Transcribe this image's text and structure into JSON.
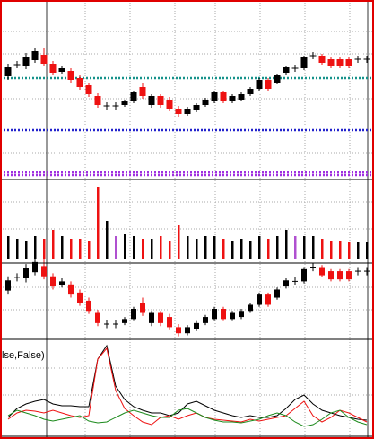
{
  "chart_data": {
    "type": "candlestick",
    "up_color": "#000000",
    "down_color": "#ee1111",
    "grid": true,
    "ylim": [
      0,
      200
    ],
    "open": [
      115,
      128,
      127,
      133,
      139,
      129,
      120,
      121,
      113,
      105,
      93,
      82,
      82,
      83,
      87,
      103,
      83,
      93,
      89,
      79,
      73,
      77,
      83,
      87,
      97,
      87,
      89,
      95,
      101,
      111,
      108,
      119,
      124,
      124,
      138,
      138,
      134,
      134,
      134,
      134,
      134
    ],
    "high": [
      129,
      132,
      141,
      146,
      146,
      132,
      127,
      124,
      116,
      108,
      96,
      86,
      86,
      89,
      99,
      108,
      95,
      95,
      92,
      82,
      81,
      85,
      91,
      99,
      99,
      95,
      97,
      103,
      113,
      113,
      118,
      127,
      128,
      138,
      142,
      140,
      136,
      136,
      136,
      138,
      138
    ],
    "low": [
      111,
      124,
      123,
      130,
      126,
      116,
      118,
      108,
      100,
      92,
      80,
      78,
      78,
      81,
      85,
      90,
      80,
      80,
      76,
      70,
      71,
      75,
      81,
      85,
      85,
      85,
      87,
      93,
      99,
      99,
      106,
      117,
      120,
      122,
      134,
      128,
      124,
      124,
      124,
      130,
      130
    ],
    "close": [
      125,
      128,
      137,
      143,
      129,
      119,
      124,
      111,
      103,
      95,
      83,
      82,
      82,
      87,
      97,
      93,
      93,
      83,
      79,
      73,
      79,
      83,
      89,
      97,
      87,
      93,
      95,
      101,
      111,
      101,
      116,
      125,
      124,
      136,
      138,
      130,
      126,
      126,
      126,
      134,
      134
    ],
    "levels": [
      {
        "value": 113,
        "color": "#16928a"
      },
      {
        "value": 55,
        "color": "#2222cc"
      },
      {
        "value": 8,
        "color": "#a030e0"
      },
      {
        "value": 5,
        "color": "#a030e0"
      }
    ],
    "volume": {
      "ylim": [
        0,
        88
      ],
      "highlight": [
        12,
        32
      ],
      "highlight_color": "#b050d0",
      "values": [
        25,
        22,
        20,
        25,
        22,
        32,
        25,
        22,
        22,
        20,
        80,
        42,
        25,
        27,
        25,
        22,
        22,
        25,
        20,
        37,
        25,
        22,
        25,
        25,
        22,
        20,
        22,
        20,
        25,
        22,
        25,
        32,
        25,
        25,
        25,
        22,
        20,
        20,
        18,
        18,
        18
      ]
    },
    "mini": {
      "ylim": [
        67,
        142
      ]
    },
    "oscillator": {
      "title": "lse,False)",
      "ylim": [
        0,
        107
      ],
      "series": [
        {
          "color": "#000000",
          "values": [
            20,
            30,
            35,
            38,
            40,
            35,
            33,
            33,
            32,
            32,
            85,
            100,
            55,
            40,
            32,
            28,
            25,
            25,
            22,
            25,
            35,
            38,
            33,
            28,
            25,
            22,
            20,
            22,
            20,
            20,
            22,
            30,
            40,
            45,
            35,
            28,
            25,
            22,
            20,
            18,
            17
          ]
        },
        {
          "color": "#ee1111",
          "values": [
            18,
            25,
            28,
            27,
            25,
            28,
            25,
            22,
            20,
            22,
            85,
            97,
            50,
            30,
            22,
            15,
            12,
            20,
            22,
            18,
            22,
            25,
            20,
            18,
            17,
            16,
            15,
            18,
            16,
            18,
            20,
            22,
            30,
            38,
            22,
            15,
            20,
            28,
            25,
            20,
            15
          ]
        },
        {
          "color": "#1c8a1c",
          "values": [
            22,
            28,
            25,
            22,
            18,
            16,
            18,
            20,
            22,
            16,
            14,
            15,
            20,
            25,
            28,
            25,
            22,
            20,
            20,
            28,
            30,
            25,
            20,
            17,
            15,
            15,
            14,
            16,
            18,
            22,
            25,
            22,
            15,
            10,
            12,
            18,
            25,
            28,
            20,
            15,
            12
          ]
        }
      ]
    }
  }
}
